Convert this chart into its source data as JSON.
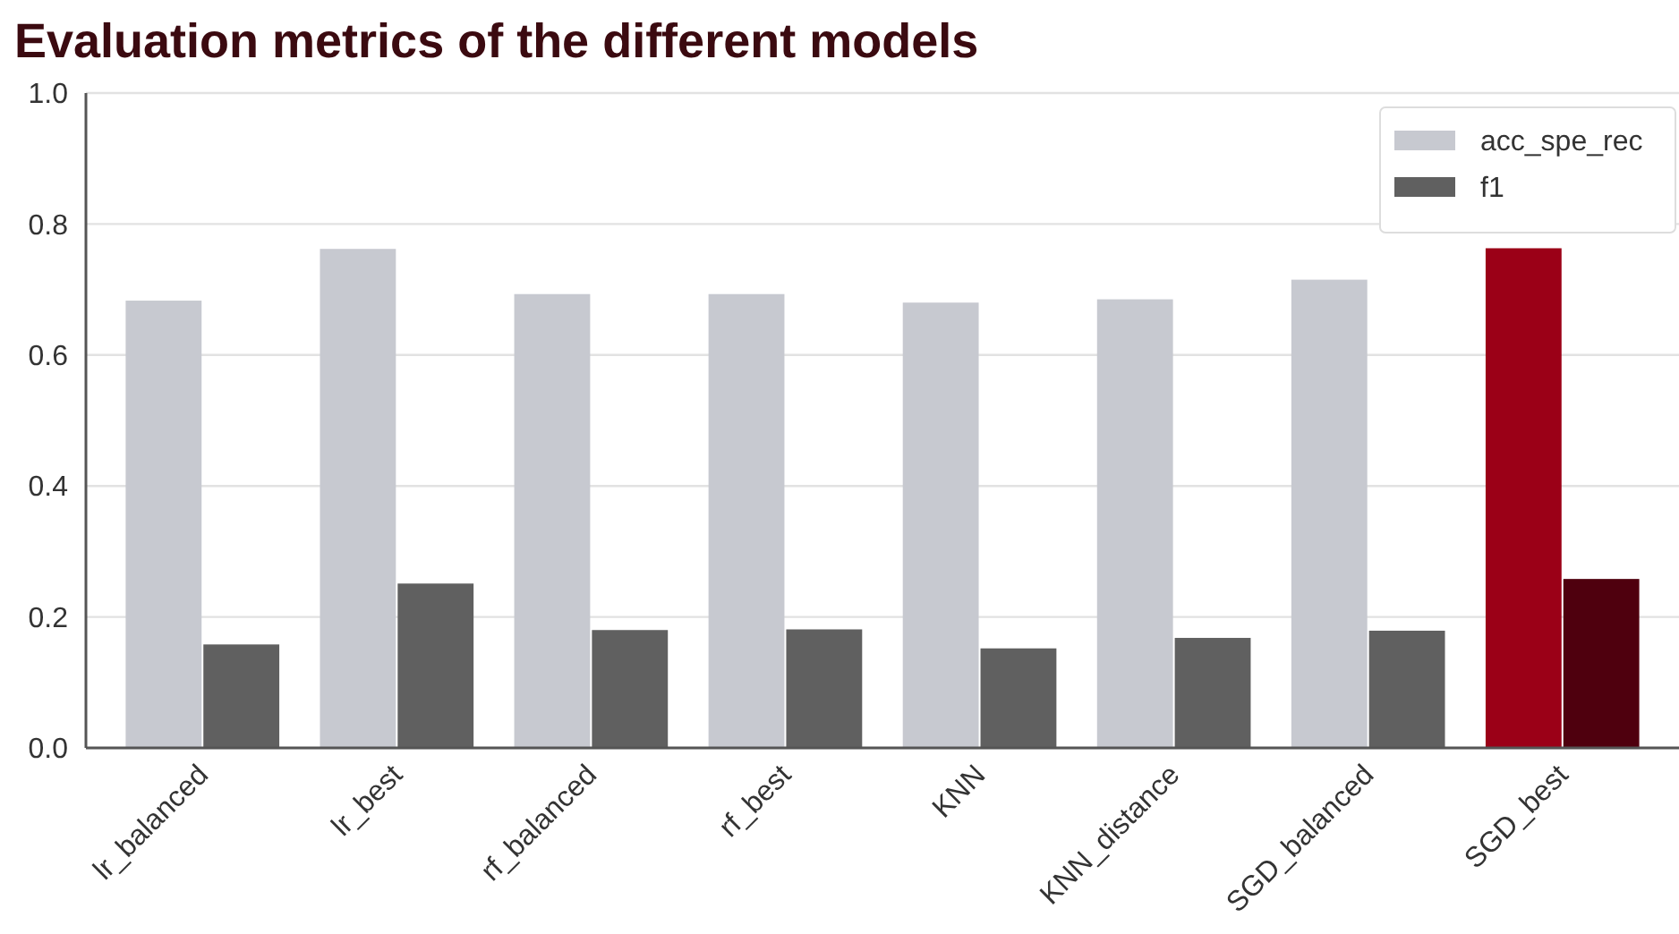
{
  "chart_data": {
    "type": "bar",
    "title": "Evaluation metrics of the different models",
    "categories": [
      "lr_balanced",
      "lr_best",
      "rf_balanced",
      "rf_best",
      "KNN",
      "KNN_distance",
      "SGD_balanced",
      "SGD_best"
    ],
    "series": [
      {
        "name": "acc_spe_rec",
        "color": "#c7c9d0",
        "colors": [
          "#c7c9d0",
          "#c7c9d0",
          "#c7c9d0",
          "#c7c9d0",
          "#c7c9d0",
          "#c7c9d0",
          "#c7c9d0",
          "#9b0017"
        ],
        "values": [
          0.683,
          0.762,
          0.693,
          0.693,
          0.68,
          0.685,
          0.715,
          0.763
        ]
      },
      {
        "name": "f1",
        "color": "#606060",
        "colors": [
          "#606060",
          "#606060",
          "#606060",
          "#606060",
          "#606060",
          "#606060",
          "#606060",
          "#4f000e"
        ],
        "values": [
          0.158,
          0.251,
          0.18,
          0.181,
          0.152,
          0.168,
          0.179,
          0.258
        ]
      }
    ],
    "ylim": [
      0,
      1
    ],
    "yticks": [
      {
        "value": 0,
        "label": "0.0"
      },
      {
        "value": 0.2,
        "label": "0.2"
      },
      {
        "value": 0.4,
        "label": "0.4"
      },
      {
        "value": 0.6,
        "label": "0.6"
      },
      {
        "value": 0.8,
        "label": "0.8"
      },
      {
        "value": 1,
        "label": "1.0"
      }
    ],
    "grid": "y",
    "legend": "top right"
  }
}
